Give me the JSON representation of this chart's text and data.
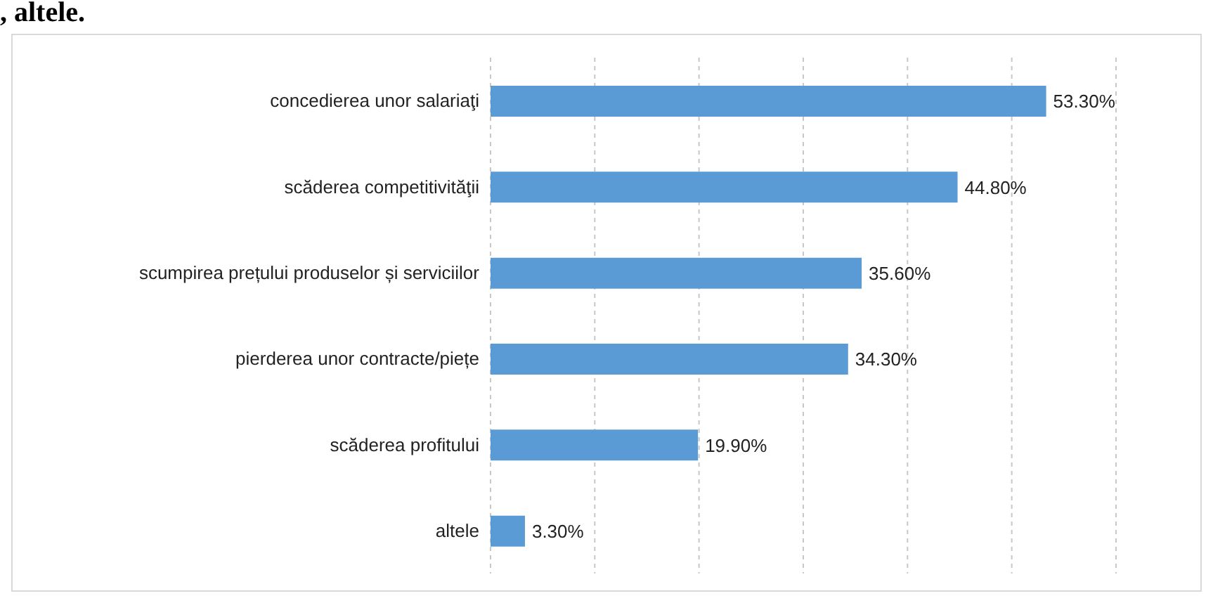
{
  "chart_data": {
    "type": "bar",
    "orientation": "horizontal",
    "annotations": [
      ", altele."
    ],
    "categories": [
      "concedierea unor salariaţi",
      "scăderea competitivităţii",
      "scumpirea prețului produselor și serviciilor",
      "pierderea unor contracte/piețe",
      "scăderea profitului",
      "altele"
    ],
    "values": [
      53.3,
      44.8,
      35.6,
      34.3,
      19.9,
      3.3
    ],
    "value_labels": [
      "53.30%",
      "44.80%",
      "35.60%",
      "34.30%",
      "19.90%",
      "3.30%"
    ],
    "color": "#5b9bd5",
    "xlim": [
      0,
      60
    ],
    "xticks": [
      {
        "value": 0,
        "label": null
      },
      {
        "value": 10,
        "label": null
      },
      {
        "value": 20,
        "label": null
      },
      {
        "value": 30,
        "label": null
      },
      {
        "value": 40,
        "label": null
      },
      {
        "value": 50,
        "label": null
      },
      {
        "value": 60,
        "label": null
      }
    ],
    "tick_labels": "y",
    "grid": "x",
    "legend": false
  }
}
